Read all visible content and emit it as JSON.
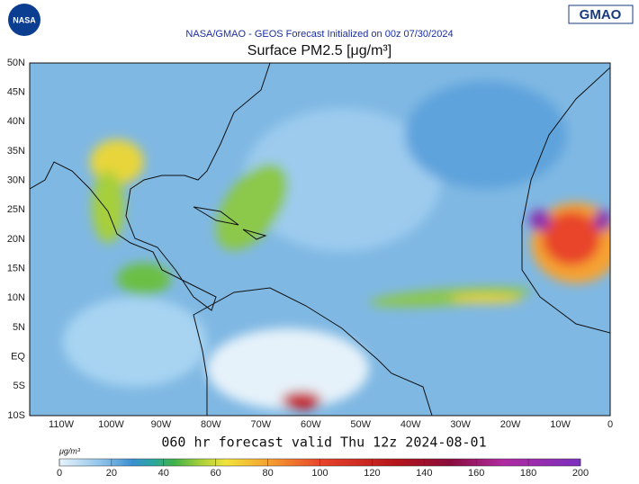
{
  "header": {
    "logo_left": "NASA",
    "subtitle": "NASA/GMAO - GEOS Forecast Initialized on 00z 07/30/2024",
    "logo_right": "GMAO",
    "title": "Surface PM2.5 [μg/m³]"
  },
  "map": {
    "lat_labels": [
      "50N",
      "45N",
      "40N",
      "35N",
      "30N",
      "25N",
      "20N",
      "15N",
      "10N",
      "5N",
      "EQ",
      "5S",
      "10S"
    ],
    "lon_labels": [
      "110W",
      "100W",
      "90W",
      "80W",
      "70W",
      "60W",
      "50W",
      "40W",
      "30W",
      "20W",
      "10W",
      "0"
    ]
  },
  "footer": "060 hr forecast valid Thu 12z 2024-08-01",
  "colorbar": {
    "unit": "μg/m³",
    "range": [
      0,
      200
    ],
    "ticks": [
      0,
      20,
      40,
      60,
      80,
      100,
      120,
      140,
      160,
      180,
      200
    ]
  }
}
